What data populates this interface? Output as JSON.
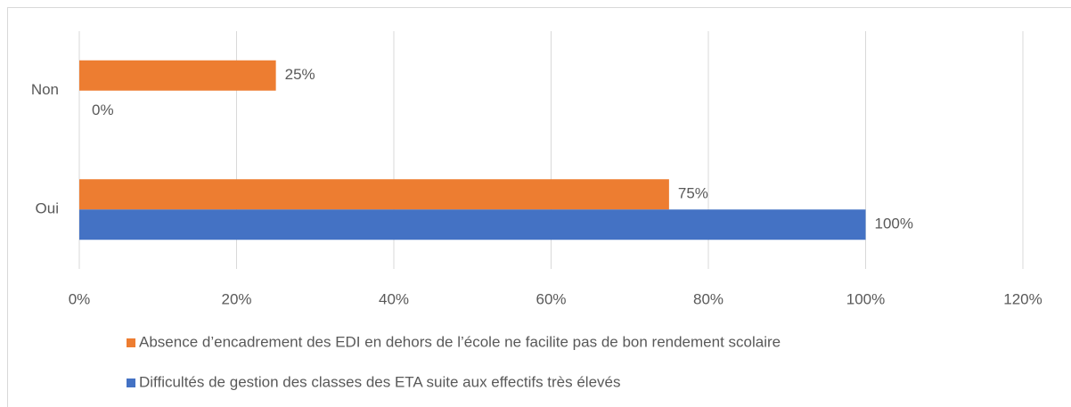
{
  "chart_data": {
    "type": "bar",
    "orientation": "horizontal",
    "categories": [
      "Non",
      "Oui"
    ],
    "series": [
      {
        "name": "Absence d’encadrement des EDI en dehors de l’école ne facilite pas de bon rendement scolaire",
        "color": "#ED7D31",
        "values": [
          25,
          75
        ],
        "value_labels": [
          "25%",
          "75%"
        ]
      },
      {
        "name": "Difficultés de gestion des classes des ETA suite aux effectifs très élevés",
        "color": "#4472C4",
        "values": [
          0,
          100
        ],
        "value_labels": [
          "0%",
          "100%"
        ]
      }
    ],
    "xlim": [
      0,
      120
    ],
    "xticks": [
      {
        "value": 0,
        "label": "0%"
      },
      {
        "value": 20,
        "label": "20%"
      },
      {
        "value": 40,
        "label": "40%"
      },
      {
        "value": 60,
        "label": "60%"
      },
      {
        "value": 80,
        "label": "80%"
      },
      {
        "value": 100,
        "label": "100%"
      },
      {
        "value": 120,
        "label": "120%"
      }
    ],
    "grid": true,
    "legend": "bottom"
  }
}
